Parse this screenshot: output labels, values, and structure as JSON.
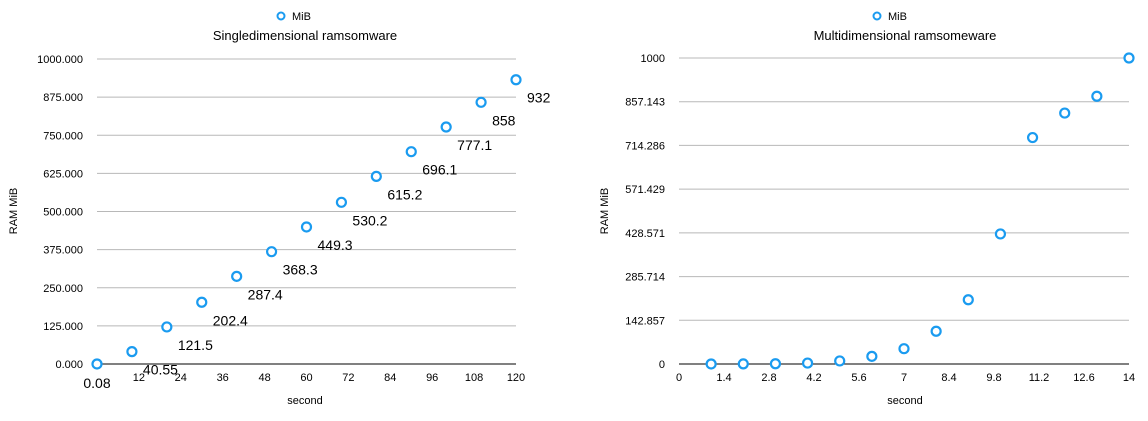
{
  "chart_data": [
    {
      "type": "scatter",
      "title": "Singledimensional ramsomware",
      "xlabel": "second",
      "ylabel": "RAM MiB",
      "legend": "top-center",
      "grid": true,
      "xlim": [
        0,
        120
      ],
      "ylim": [
        0,
        1000
      ],
      "x_ticks": [
        "12",
        "24",
        "36",
        "48",
        "60",
        "72",
        "84",
        "96",
        "108",
        "120"
      ],
      "y_ticks": [
        "0.000",
        "125.000",
        "250.000",
        "375.000",
        "500.000",
        "625.000",
        "750.000",
        "875.000",
        "1000.000"
      ],
      "series": [
        {
          "name": "MiB",
          "color": "#1a9bf0",
          "x": [
            0,
            10,
            20,
            30,
            40,
            50,
            60,
            70,
            80,
            90,
            100,
            110,
            120
          ],
          "y": [
            0.08,
            40.55,
            121.5,
            202.4,
            287.4,
            368.3,
            449.3,
            530.2,
            615.2,
            696.1,
            777.1,
            858,
            932
          ],
          "labels": [
            "0.08",
            "40.55",
            "121.5",
            "202.4",
            "287.4",
            "368.3",
            "449.3",
            "530.2",
            "615.2",
            "696.1",
            "777.1",
            "858",
            "932"
          ]
        }
      ]
    },
    {
      "type": "scatter",
      "title": "Multidimensional ramsomeware",
      "xlabel": "second",
      "ylabel": "RAM MiB",
      "legend": "top-center",
      "grid": true,
      "xlim": [
        0,
        14
      ],
      "ylim": [
        0,
        1000
      ],
      "x_ticks": [
        "0",
        "1.4",
        "2.8",
        "4.2",
        "5.6",
        "7",
        "8.4",
        "9.8",
        "11.2",
        "12.6",
        "14"
      ],
      "y_ticks": [
        "0",
        "142.857",
        "285.714",
        "428.571",
        "571.429",
        "714.286",
        "857.143",
        "1000"
      ],
      "series": [
        {
          "name": "MiB",
          "color": "#1a9bf0",
          "x": [
            1,
            2,
            3,
            4,
            5,
            6,
            7,
            8,
            9,
            10,
            11,
            12,
            13,
            14
          ],
          "y": [
            0.1,
            0.3,
            0.8,
            3,
            10,
            25,
            50,
            107,
            210,
            425,
            740,
            820,
            875,
            1000
          ]
        }
      ]
    }
  ]
}
